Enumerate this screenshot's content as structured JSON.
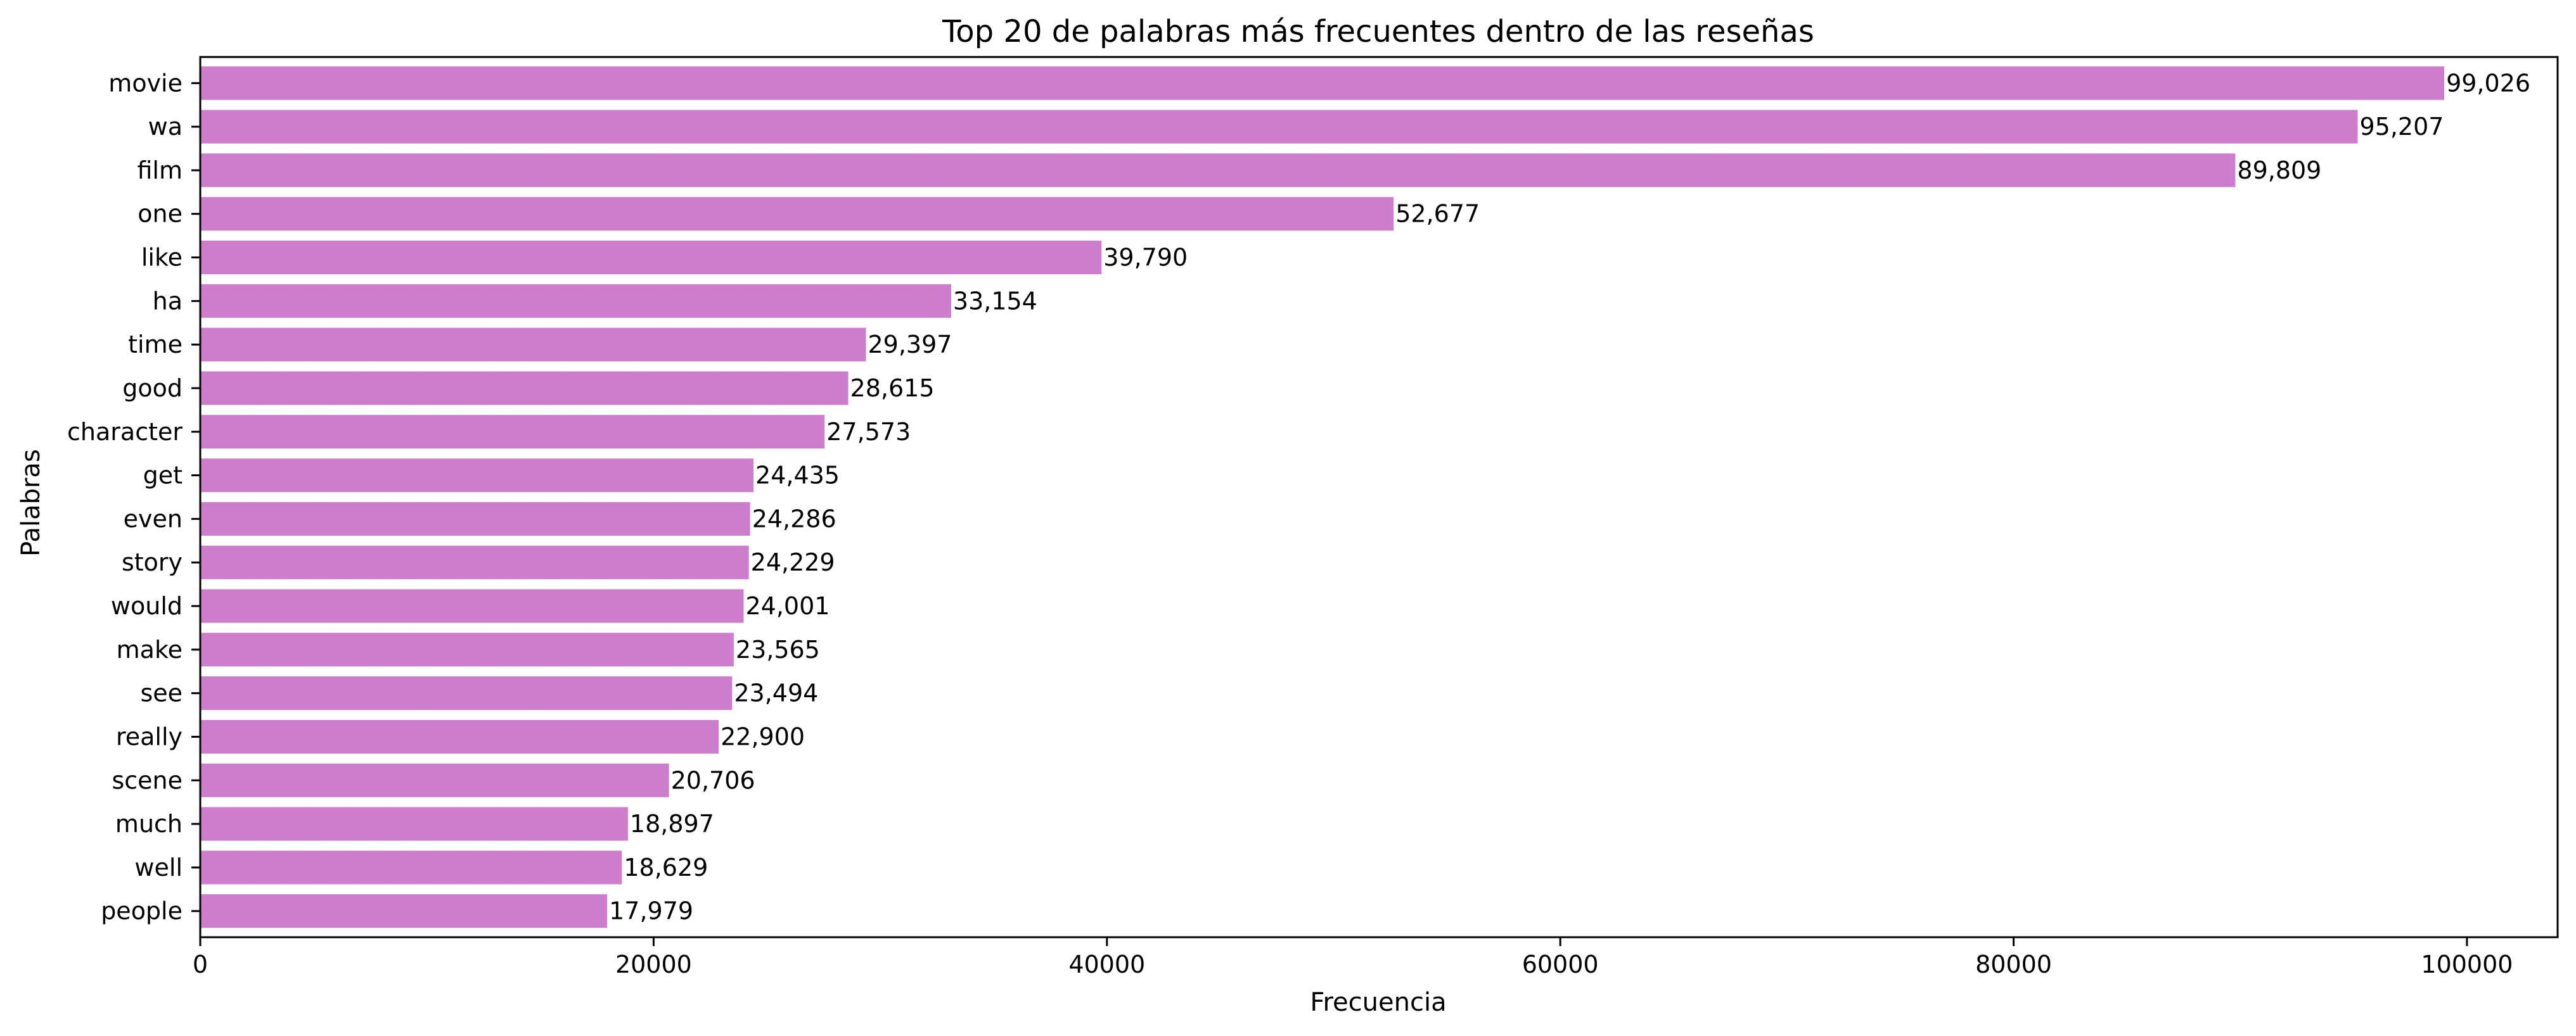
{
  "chart_data": {
    "type": "bar",
    "orientation": "horizontal",
    "title": "Top 20 de palabras más frecuentes dentro de las reseñas",
    "xlabel": "Frecuencia",
    "ylabel": "Palabras",
    "categories": [
      "movie",
      "wa",
      "film",
      "one",
      "like",
      "ha",
      "time",
      "good",
      "character",
      "get",
      "even",
      "story",
      "would",
      "make",
      "see",
      "really",
      "scene",
      "much",
      "well",
      "people"
    ],
    "values": [
      99026,
      95207,
      89809,
      52677,
      39790,
      33154,
      29397,
      28615,
      27573,
      24435,
      24286,
      24229,
      24001,
      23565,
      23494,
      22900,
      20706,
      18897,
      18629,
      17979
    ],
    "value_labels": [
      "99,026",
      "95,207",
      "89,809",
      "52,677",
      "39,790",
      "33,154",
      "29,397",
      "28,615",
      "27,573",
      "24,435",
      "24,286",
      "24,229",
      "24,001",
      "23,565",
      "23,494",
      "22,900",
      "20,706",
      "18,897",
      "18,629",
      "17,979"
    ],
    "xlim": [
      0,
      104000
    ],
    "xticks": [
      0,
      20000,
      40000,
      60000,
      80000,
      100000
    ],
    "xtick_labels": [
      "0",
      "20000",
      "40000",
      "60000",
      "80000",
      "100000"
    ],
    "bar_color": "#cc7dcc",
    "grid": false,
    "legend": "none"
  }
}
